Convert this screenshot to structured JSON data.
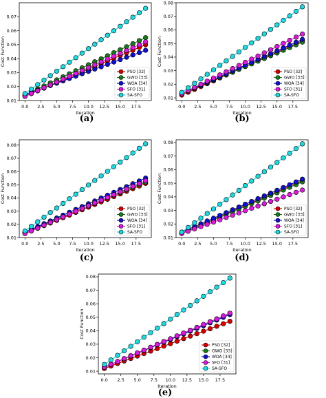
{
  "chart_data": [
    {
      "panel_label": "(a)",
      "type": "line",
      "xlabel": "Iteration",
      "ylabel": "Cost Function",
      "xlim": [
        -0.9,
        19.9
      ],
      "ylim": [
        0.01,
        0.08
      ],
      "xticks": [
        "0.0",
        "2.5",
        "5.0",
        "7.5",
        "10.0",
        "12.5",
        "15.0",
        "17.5"
      ],
      "yticks": [
        "0.01",
        "0.02",
        "0.03",
        "0.04",
        "0.05",
        "0.06",
        "0.07"
      ],
      "legend_position": "lower-right",
      "x": [
        0,
        1,
        2,
        3,
        4,
        5,
        6,
        7,
        8,
        9,
        10,
        11,
        12,
        13,
        14,
        15,
        16,
        17,
        18,
        19
      ],
      "series": [
        {
          "name": "PSO [32]",
          "start": 0.013,
          "end": 0.05
        },
        {
          "name": "GWO [33]",
          "start": 0.014,
          "end": 0.055
        },
        {
          "name": "WOA [34]",
          "start": 0.014,
          "end": 0.046
        },
        {
          "name": "SFO [31]",
          "start": 0.013,
          "end": 0.052
        },
        {
          "name": "SA-SFO",
          "start": 0.015,
          "end": 0.076
        }
      ]
    },
    {
      "panel_label": "(b)",
      "type": "line",
      "xlabel": "Iteration",
      "ylabel": "Cost Function",
      "xlim": [
        -0.9,
        19.9
      ],
      "ylim": [
        0.008,
        0.08
      ],
      "xticks": [
        "0.0",
        "2.5",
        "5.0",
        "7.5",
        "10.0",
        "12.5",
        "15.0",
        "17.5"
      ],
      "yticks": [
        "0.01",
        "0.02",
        "0.03",
        "0.04",
        "0.05",
        "0.06",
        "0.07",
        "0.08"
      ],
      "legend_position": "lower-right",
      "x": [
        0,
        1,
        2,
        3,
        4,
        5,
        6,
        7,
        8,
        9,
        10,
        11,
        12,
        13,
        14,
        15,
        16,
        17,
        18,
        19
      ],
      "series": [
        {
          "name": "PSO [32]",
          "start": 0.012,
          "end": 0.052
        },
        {
          "name": "GWO [33]",
          "start": 0.013,
          "end": 0.051
        },
        {
          "name": "WOA [34]",
          "start": 0.013,
          "end": 0.053
        },
        {
          "name": "SFO [31]",
          "start": 0.013,
          "end": 0.057
        },
        {
          "name": "SA-SFO",
          "start": 0.014,
          "end": 0.077
        }
      ]
    },
    {
      "panel_label": "(c)",
      "type": "line",
      "xlabel": "Iteration",
      "ylabel": "Cost Function",
      "xlim": [
        -0.9,
        19.9
      ],
      "ylim": [
        0.01,
        0.084
      ],
      "xticks": [
        "0.0",
        "2.5",
        "5.0",
        "7.5",
        "10.0",
        "12.5",
        "15.0",
        "17.5"
      ],
      "yticks": [
        "0.01",
        "0.02",
        "0.03",
        "0.04",
        "0.05",
        "0.06",
        "0.07",
        "0.08"
      ],
      "legend_position": "lower-right",
      "x": [
        0,
        1,
        2,
        3,
        4,
        5,
        6,
        7,
        8,
        9,
        10,
        11,
        12,
        13,
        14,
        15,
        16,
        17,
        18,
        19
      ],
      "series": [
        {
          "name": "PSO [32]",
          "start": 0.013,
          "end": 0.051
        },
        {
          "name": "GWO [33]",
          "start": 0.014,
          "end": 0.052
        },
        {
          "name": "WOA [34]",
          "start": 0.014,
          "end": 0.055
        },
        {
          "name": "SFO [31]",
          "start": 0.013,
          "end": 0.053
        },
        {
          "name": "SA-SFO",
          "start": 0.015,
          "end": 0.081
        }
      ]
    },
    {
      "panel_label": "(d)",
      "type": "line",
      "xlabel": "Iteration",
      "ylabel": "Cost Function",
      "xlim": [
        -0.9,
        19.9
      ],
      "ylim": [
        0.01,
        0.082
      ],
      "xticks": [
        "0.0",
        "2.5",
        "5.0",
        "7.5",
        "10.0",
        "12.5",
        "15.0",
        "17.5"
      ],
      "yticks": [
        "0.01",
        "0.02",
        "0.03",
        "0.04",
        "0.05",
        "0.06",
        "0.07",
        "0.08"
      ],
      "legend_position": "lower-right",
      "x": [
        0,
        1,
        2,
        3,
        4,
        5,
        6,
        7,
        8,
        9,
        10,
        11,
        12,
        13,
        14,
        15,
        16,
        17,
        18,
        19
      ],
      "series": [
        {
          "name": "PSO [32]",
          "start": 0.013,
          "end": 0.052
        },
        {
          "name": "GWO [33]",
          "start": 0.013,
          "end": 0.051
        },
        {
          "name": "WOA [34]",
          "start": 0.014,
          "end": 0.053
        },
        {
          "name": "SFO [31]",
          "start": 0.013,
          "end": 0.045
        },
        {
          "name": "SA-SFO",
          "start": 0.014,
          "end": 0.079
        }
      ]
    },
    {
      "panel_label": "(e)",
      "type": "line",
      "xlabel": "Iteration",
      "ylabel": "Cost Function",
      "xlim": [
        -0.9,
        19.9
      ],
      "ylim": [
        0.008,
        0.082
      ],
      "xticks": [
        "0.0",
        "2.5",
        "5.0",
        "7.5",
        "10.0",
        "12.5",
        "15.0",
        "17.5"
      ],
      "yticks": [
        "0.01",
        "0.02",
        "0.03",
        "0.04",
        "0.05",
        "0.06",
        "0.07",
        "0.08"
      ],
      "legend_position": "lower-right",
      "x": [
        0,
        1,
        2,
        3,
        4,
        5,
        6,
        7,
        8,
        9,
        10,
        11,
        12,
        13,
        14,
        15,
        16,
        17,
        18,
        19
      ],
      "series": [
        {
          "name": "PSO [32]",
          "start": 0.012,
          "end": 0.047
        },
        {
          "name": "GWO [33]",
          "start": 0.013,
          "end": 0.053
        },
        {
          "name": "WOA [34]",
          "start": 0.013,
          "end": 0.052
        },
        {
          "name": "SFO [31]",
          "start": 0.013,
          "end": 0.053
        },
        {
          "name": "SA-SFO",
          "start": 0.015,
          "end": 0.079
        }
      ]
    }
  ],
  "series_colors": {
    "PSO [32]": "#d40000",
    "GWO [33]": "#1e7a1e",
    "WOA [34]": "#1010c8",
    "SFO [31]": "#d81ed8",
    "SA-SFO": "#22d8e0"
  }
}
